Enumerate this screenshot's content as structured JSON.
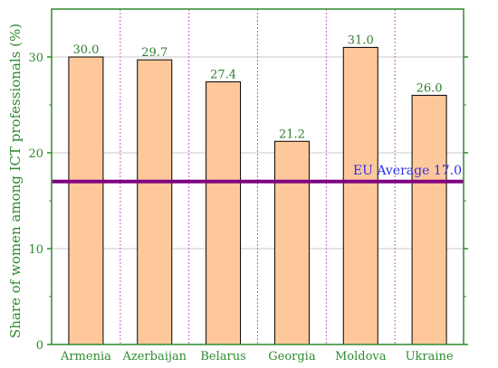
{
  "chart_data": {
    "type": "bar",
    "title": "",
    "xlabel": "",
    "ylabel": "Share of women among ICT professionals (%)",
    "categories": [
      "Armenia",
      "Azerbaijan",
      "Belarus",
      "Georgia",
      "Moldova",
      "Ukraine"
    ],
    "values": [
      30.0,
      29.7,
      27.4,
      21.2,
      31.0,
      26.0
    ],
    "data_labels": [
      "30.0",
      "29.7",
      "27.4",
      "21.2",
      "31.0",
      "26.0"
    ],
    "ylim": [
      0,
      35
    ],
    "yticks": [
      0,
      10,
      20,
      30
    ],
    "reference_line": {
      "label": "EU Average 17.0",
      "value": 17.0,
      "color": "#800080"
    },
    "grid": {
      "horizontal": true,
      "vertical_separators": true
    },
    "colors": {
      "bar_fill": "#ffc89a",
      "bar_stroke": "#000000",
      "axis": "#2e8b2e",
      "grid": "#c8c8c8",
      "separator": "#c060c0",
      "reference_label": "#3030e0"
    }
  }
}
